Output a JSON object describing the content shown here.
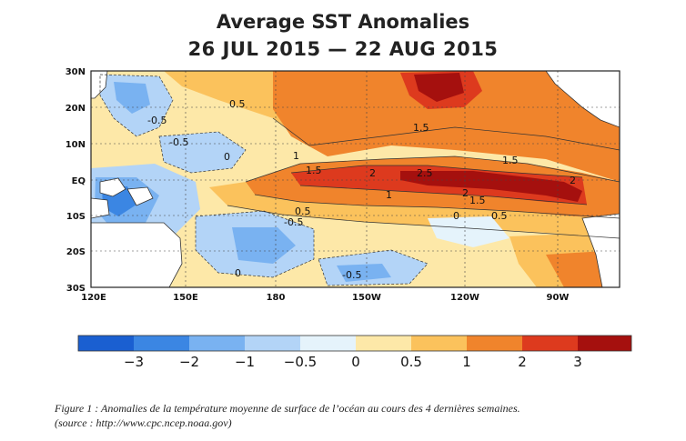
{
  "title": {
    "line1": "Average SST Anomalies",
    "line2": "26 JUL 2015 — 22 AUG 2015"
  },
  "map": {
    "lat_labels": [
      "30N",
      "20N",
      "10N",
      "EQ",
      "10S",
      "20S",
      "30S"
    ],
    "lon_labels": [
      "120E",
      "150E",
      "180",
      "150W",
      "120W",
      "90W"
    ],
    "contour_labels": [
      "0.5",
      "-0.5",
      "-0.5",
      "1.5",
      "1",
      "1.5",
      "2",
      "2.5",
      "1",
      "2",
      "1.5",
      "1.5",
      "2",
      "0",
      "0.5",
      "-0.5",
      "0.5",
      "0",
      "-0.5",
      "0"
    ]
  },
  "colorbar": {
    "labels": [
      "−3",
      "−2",
      "−1",
      "−0.5",
      "0",
      "0.5",
      "1",
      "2",
      "3"
    ],
    "colors": [
      "#1a5fd1",
      "#3b86e3",
      "#79b2f1",
      "#b3d4f7",
      "#e5f3fb",
      "#fde8a8",
      "#fbc25c",
      "#f0842c",
      "#dd3a1e",
      "#a5100e"
    ]
  },
  "caption": {
    "line1": "Figure 1 : Anomalies de la température moyenne de surface de l’océan au cours des 4 dernières semaines.",
    "line2": "(source : http://www.cpc.ncep.noaa.gov)"
  }
}
